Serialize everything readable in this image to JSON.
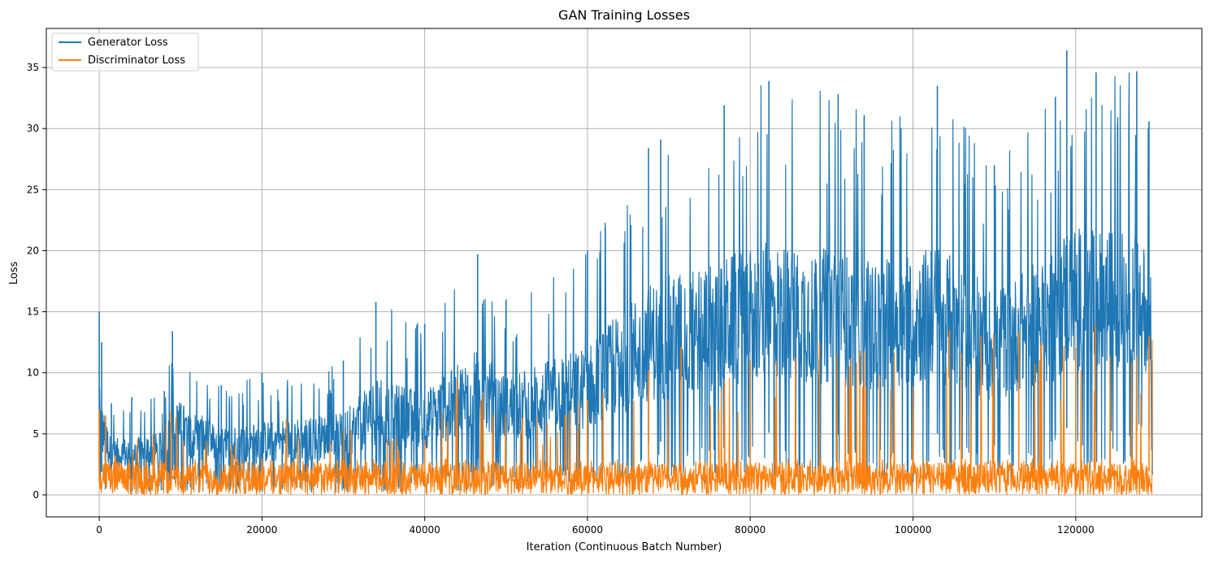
{
  "chart_data": {
    "type": "line",
    "title": "GAN Training Losses",
    "xlabel": "Iteration (Continuous Batch Number)",
    "ylabel": "Loss",
    "xlim": [
      -6500,
      135500
    ],
    "ylim": [
      -1.8,
      38.2
    ],
    "xticks": [
      0,
      20000,
      40000,
      60000,
      80000,
      100000,
      120000
    ],
    "xtick_labels": [
      "0",
      "20000",
      "40000",
      "60000",
      "80000",
      "100000",
      "120000"
    ],
    "yticks": [
      0,
      5,
      10,
      15,
      20,
      25,
      30,
      35
    ],
    "ytick_labels": [
      "0",
      "5",
      "10",
      "15",
      "20",
      "25",
      "30",
      "35"
    ],
    "grid": true,
    "legend_position": "top-left",
    "x_max": 129400,
    "series": [
      {
        "name": "Generator Loss",
        "color": "#1f77b4",
        "upper_envelope": [
          [
            0,
            15
          ],
          [
            300,
            12.5
          ],
          [
            1500,
            7.5
          ],
          [
            4000,
            8
          ],
          [
            8000,
            8.5
          ],
          [
            9000,
            13.4
          ],
          [
            15000,
            9
          ],
          [
            20000,
            10
          ],
          [
            30000,
            11
          ],
          [
            34000,
            15.8
          ],
          [
            40000,
            14
          ],
          [
            46500,
            19.7
          ],
          [
            50000,
            16
          ],
          [
            60000,
            20
          ],
          [
            67500,
            28.4
          ],
          [
            69000,
            29.1
          ],
          [
            76800,
            31.9
          ],
          [
            82300,
            33.9
          ],
          [
            90800,
            32.8
          ],
          [
            94000,
            31.1
          ],
          [
            103000,
            33.5
          ],
          [
            110000,
            27
          ],
          [
            117500,
            32.6
          ],
          [
            118900,
            36.4
          ],
          [
            122500,
            34.6
          ],
          [
            127500,
            34.7
          ],
          [
            129000,
            30.6
          ],
          [
            129400,
            11
          ]
        ],
        "lower_envelope": [
          [
            0,
            0.2
          ],
          [
            1500,
            0.1
          ],
          [
            20000,
            0.1
          ],
          [
            40000,
            0.3
          ],
          [
            60000,
            0.5
          ],
          [
            80000,
            1
          ],
          [
            100000,
            1
          ],
          [
            120000,
            1.5
          ],
          [
            129400,
            3
          ]
        ]
      },
      {
        "name": "Discriminator Loss",
        "color": "#ff7f0e",
        "upper_envelope": [
          [
            0,
            7
          ],
          [
            800,
            6.5
          ],
          [
            2000,
            3.2
          ],
          [
            8800,
            6.8
          ],
          [
            20000,
            3
          ],
          [
            23000,
            6.2
          ],
          [
            40000,
            4.5
          ],
          [
            44000,
            9.5
          ],
          [
            52000,
            6.3
          ],
          [
            60000,
            7.8
          ],
          [
            67500,
            10.2
          ],
          [
            71500,
            12.1
          ],
          [
            80000,
            11
          ],
          [
            88500,
            12.5
          ],
          [
            94000,
            11.7
          ],
          [
            104500,
            13.5
          ],
          [
            113000,
            13.3
          ],
          [
            120000,
            12
          ],
          [
            122400,
            14
          ],
          [
            129000,
            13
          ]
        ],
        "lower_envelope": [
          [
            0,
            0
          ],
          [
            129400,
            0
          ]
        ]
      }
    ]
  }
}
